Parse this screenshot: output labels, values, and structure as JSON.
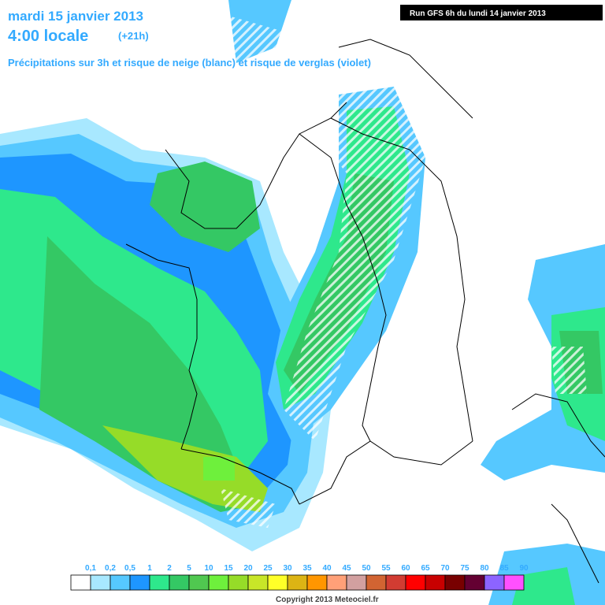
{
  "header": {
    "date": "mardi 15 janvier 2013",
    "time": "4:00 locale",
    "offset": "(+21h)",
    "subtitle": "Précipitations sur 3h et risque de neige (blanc) et risque de verglas (violet)",
    "run": "Run GFS 6h du lundi 14 janvier 2013"
  },
  "legend": {
    "labels": [
      "0,1",
      "0,2",
      "0,5",
      "1",
      "2",
      "5",
      "10",
      "15",
      "20",
      "25",
      "30",
      "35",
      "40",
      "45",
      "50",
      "55",
      "60",
      "65",
      "70",
      "75",
      "80",
      "85",
      "90"
    ],
    "colors": [
      "#ffffff",
      "#a8e8ff",
      "#56c8ff",
      "#1e96ff",
      "#2ee88c",
      "#34c864",
      "#50c850",
      "#6ef03c",
      "#96dc28",
      "#c8e628",
      "#ffff28",
      "#dcb414",
      "#ff9600",
      "#ffa078",
      "#d2a0a0",
      "#d26432",
      "#d23c32",
      "#ff0000",
      "#c80000",
      "#780000",
      "#640032",
      "#8c64ff",
      "#ff50ff"
    ]
  },
  "footer": {
    "copyright": "Copyright 2013 Meteociel.fr"
  }
}
